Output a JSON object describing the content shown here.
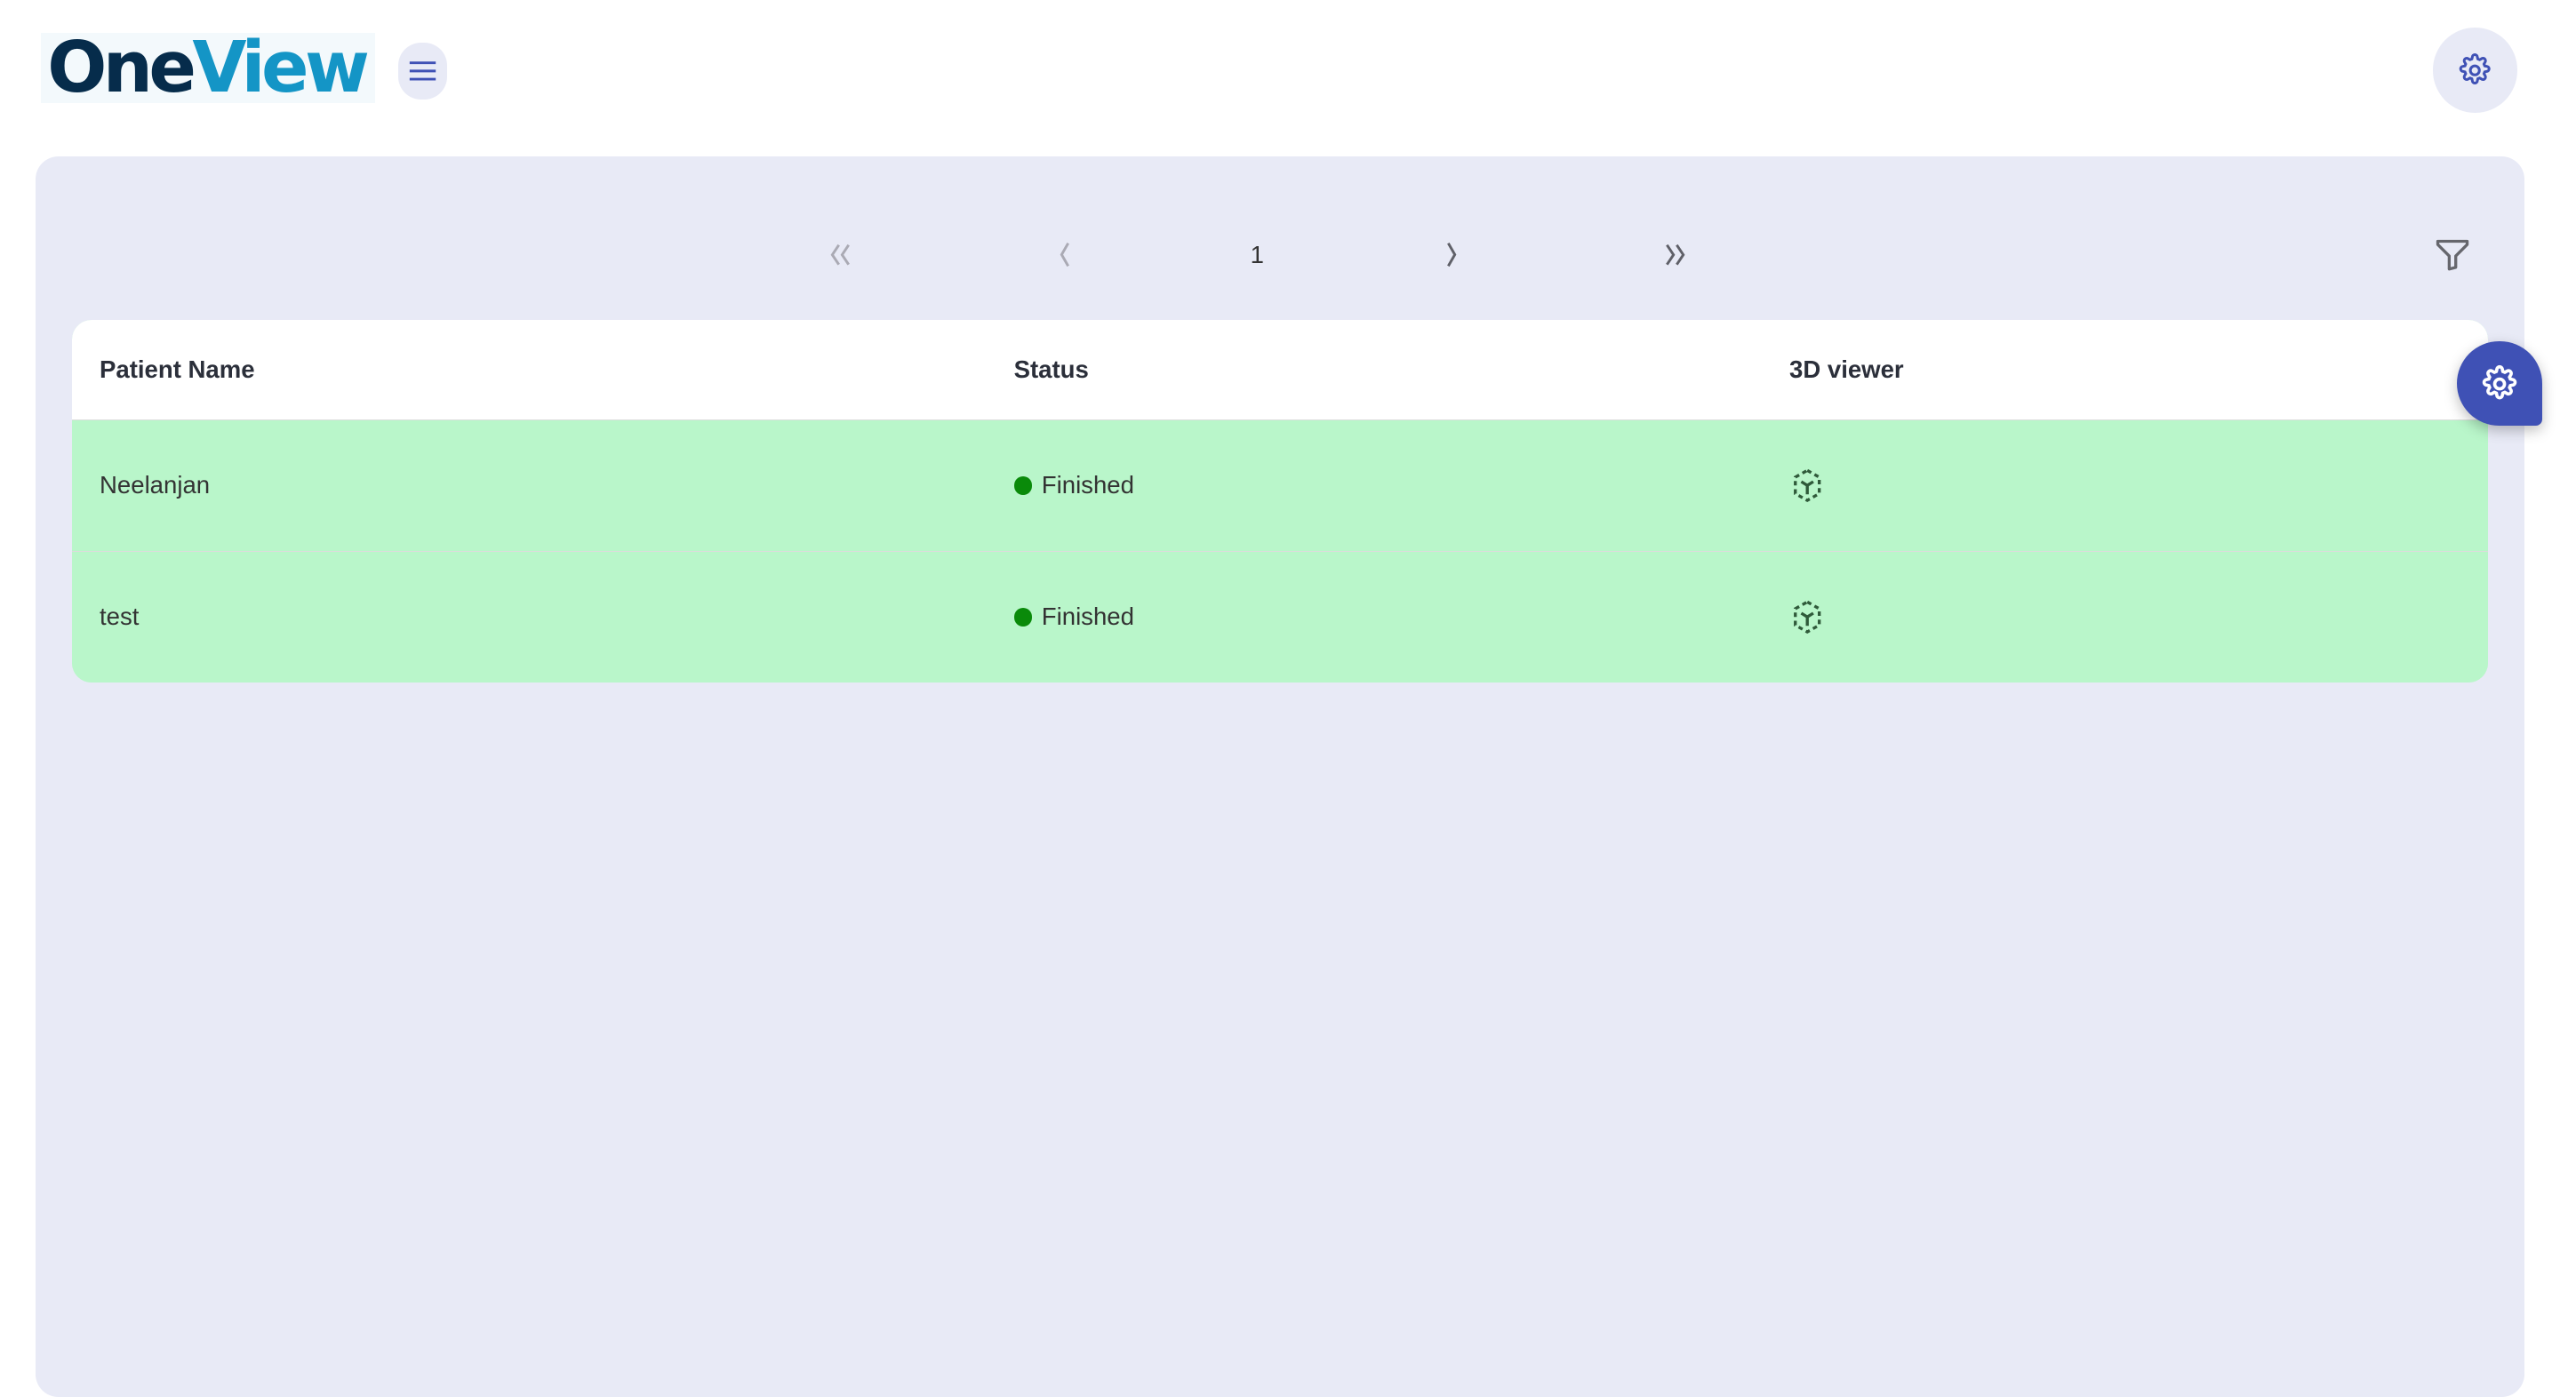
{
  "header": {
    "logo_part1": "One",
    "logo_part2": "View",
    "menu_icon": "hamburger-icon",
    "settings_icon": "gear-icon"
  },
  "pagination": {
    "current_page": "1",
    "first_icon": "chevrons-left-icon",
    "prev_icon": "chevron-left-icon",
    "next_icon": "chevron-right-icon",
    "last_icon": "chevrons-right-icon"
  },
  "filter_icon": "filter-icon",
  "table": {
    "columns": [
      "Patient Name",
      "Status",
      "3D viewer"
    ],
    "rows": [
      {
        "name": "Neelanjan",
        "status": "Finished"
      },
      {
        "name": "test",
        "status": "Finished"
      }
    ]
  },
  "colors": {
    "accent": "#3f51b5",
    "panel": "#e8eaf6",
    "row_finished": "#b9f6ca",
    "status_finished": "#0a8a0a"
  }
}
